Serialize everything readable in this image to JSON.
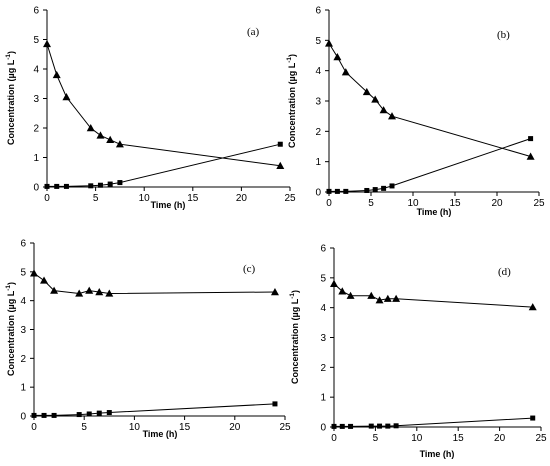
{
  "colors": {
    "axis": "#000000",
    "line": "#000000",
    "marker": "#000000",
    "background": "#ffffff"
  },
  "chart_data": [
    {
      "type": "line",
      "panel_label": "(a)",
      "xlabel": "Time (h)",
      "ylabel": "Concentration (µg L",
      "ylabel_sup": "-1",
      "ylabel_close": ")",
      "xlim": [
        0,
        25
      ],
      "ylim": [
        0,
        6
      ],
      "xticks": [
        "0",
        "5",
        "10",
        "15",
        "20",
        "25"
      ],
      "yticks": [
        "0",
        "1",
        "2",
        "3",
        "4",
        "5",
        "6"
      ],
      "grid": false,
      "series": [
        {
          "marker": "triangle",
          "x": [
            0,
            1,
            2,
            4.5,
            5.5,
            6.5,
            7.5,
            24
          ],
          "y": [
            4.85,
            3.8,
            3.05,
            2.0,
            1.75,
            1.6,
            1.45,
            0.72
          ]
        },
        {
          "marker": "square",
          "x": [
            0,
            1,
            2,
            4.5,
            5.5,
            6.5,
            7.5,
            24
          ],
          "y": [
            0.02,
            0.02,
            0.02,
            0.04,
            0.06,
            0.1,
            0.15,
            1.45
          ]
        }
      ]
    },
    {
      "type": "line",
      "panel_label": "(b)",
      "xlabel": "Time (h)",
      "ylabel": "Concentration (µg L",
      "ylabel_sup": "-1",
      "ylabel_close": ")",
      "xlim": [
        0,
        25
      ],
      "ylim": [
        0,
        6
      ],
      "xticks": [
        "0",
        "5",
        "10",
        "15",
        "20",
        "25"
      ],
      "yticks": [
        "0",
        "1",
        "2",
        "3",
        "4",
        "5",
        "6"
      ],
      "grid": false,
      "series": [
        {
          "marker": "triangle",
          "x": [
            0,
            1,
            2,
            4.5,
            5.5,
            6.5,
            7.5,
            24
          ],
          "y": [
            4.9,
            4.45,
            3.95,
            3.3,
            3.05,
            2.7,
            2.5,
            1.17
          ]
        },
        {
          "marker": "square",
          "x": [
            0,
            1,
            2,
            4.5,
            5.5,
            6.5,
            7.5,
            24
          ],
          "y": [
            0.02,
            0.02,
            0.02,
            0.05,
            0.08,
            0.12,
            0.2,
            1.76
          ]
        }
      ]
    },
    {
      "type": "line",
      "panel_label": "(c)",
      "xlabel": "Time (h)",
      "ylabel": "Concentration (µg L",
      "ylabel_sup": "-1",
      "ylabel_close": ")",
      "xlim": [
        0,
        25
      ],
      "ylim": [
        0,
        6
      ],
      "xticks": [
        "0",
        "5",
        "10",
        "15",
        "20",
        "25"
      ],
      "yticks": [
        "0",
        "1",
        "2",
        "3",
        "4",
        "5",
        "6"
      ],
      "grid": false,
      "series": [
        {
          "marker": "triangle",
          "x": [
            0,
            1,
            2,
            4.5,
            5.5,
            6.5,
            7.5,
            24
          ],
          "y": [
            4.95,
            4.7,
            4.35,
            4.25,
            4.35,
            4.3,
            4.25,
            4.3
          ]
        },
        {
          "marker": "square",
          "x": [
            0,
            1,
            2,
            4.5,
            5.5,
            6.5,
            7.5,
            24
          ],
          "y": [
            0.02,
            0.02,
            0.02,
            0.05,
            0.07,
            0.1,
            0.12,
            0.42
          ]
        }
      ]
    },
    {
      "type": "line",
      "panel_label": "(d)",
      "xlabel": "Time (h)",
      "ylabel": "Concentration (µg L",
      "ylabel_sup": "-1",
      "ylabel_close": ")",
      "xlim": [
        0,
        25
      ],
      "ylim": [
        0,
        6
      ],
      "xticks": [
        "0",
        "5",
        "10",
        "15",
        "20",
        "25"
      ],
      "yticks": [
        "0",
        "1",
        "2",
        "3",
        "4",
        "5",
        "6"
      ],
      "grid": false,
      "series": [
        {
          "marker": "triangle",
          "x": [
            0,
            1,
            2,
            4.5,
            5.5,
            6.5,
            7.5,
            24
          ],
          "y": [
            4.8,
            4.55,
            4.4,
            4.4,
            4.25,
            4.3,
            4.3,
            4.02
          ]
        },
        {
          "marker": "square",
          "x": [
            0,
            1,
            2,
            4.5,
            5.5,
            6.5,
            7.5,
            24
          ],
          "y": [
            0.02,
            0.02,
            0.02,
            0.03,
            0.03,
            0.03,
            0.04,
            0.3
          ]
        }
      ]
    }
  ]
}
